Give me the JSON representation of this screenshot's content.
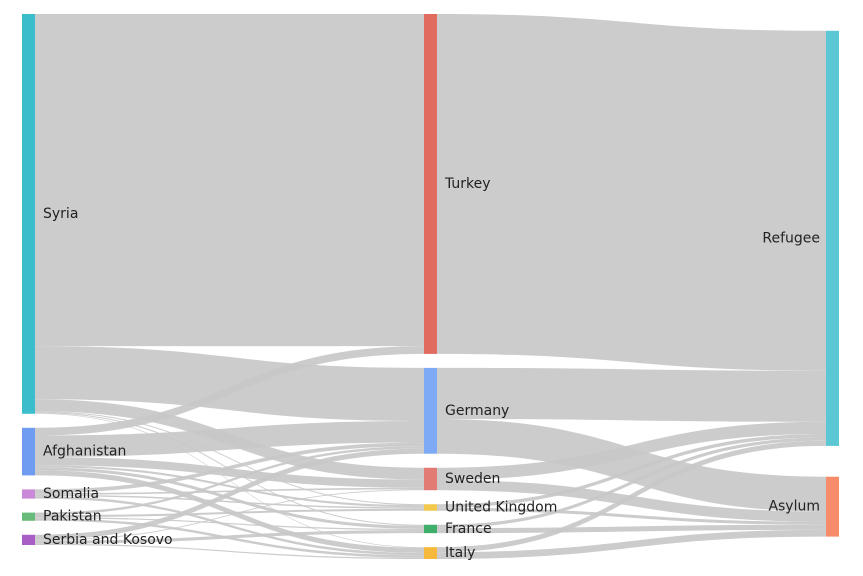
{
  "chart_data": {
    "type": "sankey",
    "nodes": [
      {
        "id": "syria",
        "label": "Syria",
        "column": 0,
        "color": "#3bbdcc"
      },
      {
        "id": "afghanistan",
        "label": "Afghanistan",
        "column": 0,
        "color": "#6f9bf0"
      },
      {
        "id": "somalia",
        "label": "Somalia",
        "column": 0,
        "color": "#cc88d8"
      },
      {
        "id": "pakistan",
        "label": "Pakistan",
        "column": 0,
        "color": "#66bb7a"
      },
      {
        "id": "serbia",
        "label": "Serbia and Kosovo",
        "column": 0,
        "color": "#a85ec4"
      },
      {
        "id": "turkey",
        "label": "Turkey",
        "column": 1,
        "color": "#e06b5e"
      },
      {
        "id": "germany",
        "label": "Germany",
        "column": 1,
        "color": "#7eaaf5"
      },
      {
        "id": "sweden",
        "label": "Sweden",
        "column": 1,
        "color": "#e37b75"
      },
      {
        "id": "uk",
        "label": "United Kingdom",
        "column": 1,
        "color": "#f2c94c"
      },
      {
        "id": "france",
        "label": "France",
        "column": 1,
        "color": "#3fae6a"
      },
      {
        "id": "italy",
        "label": "Italy",
        "column": 1,
        "color": "#f6b93b"
      },
      {
        "id": "refugee",
        "label": "Refugee",
        "column": 2,
        "color": "#5bc7d5"
      },
      {
        "id": "asylum",
        "label": "Asylum",
        "column": 2,
        "color": "#f78c6b"
      }
    ],
    "links": [
      {
        "source": "syria",
        "target": "turkey",
        "value": 1625
      },
      {
        "source": "syria",
        "target": "germany",
        "value": 260
      },
      {
        "source": "syria",
        "target": "sweden",
        "value": 58
      },
      {
        "source": "syria",
        "target": "uk",
        "value": 5
      },
      {
        "source": "syria",
        "target": "france",
        "value": 5
      },
      {
        "source": "syria",
        "target": "italy",
        "value": 3
      },
      {
        "source": "afghanistan",
        "target": "turkey",
        "value": 38
      },
      {
        "source": "afghanistan",
        "target": "germany",
        "value": 105
      },
      {
        "source": "afghanistan",
        "target": "sweden",
        "value": 40
      },
      {
        "source": "afghanistan",
        "target": "uk",
        "value": 10
      },
      {
        "source": "afghanistan",
        "target": "france",
        "value": 15
      },
      {
        "source": "afghanistan",
        "target": "italy",
        "value": 25
      },
      {
        "source": "somalia",
        "target": "germany",
        "value": 18
      },
      {
        "source": "somalia",
        "target": "sweden",
        "value": 8
      },
      {
        "source": "somalia",
        "target": "uk",
        "value": 7
      },
      {
        "source": "somalia",
        "target": "italy",
        "value": 12
      },
      {
        "source": "pakistan",
        "target": "germany",
        "value": 12
      },
      {
        "source": "pakistan",
        "target": "uk",
        "value": 10
      },
      {
        "source": "pakistan",
        "target": "france",
        "value": 6
      },
      {
        "source": "pakistan",
        "target": "italy",
        "value": 12
      },
      {
        "source": "serbia",
        "target": "germany",
        "value": 25
      },
      {
        "source": "serbia",
        "target": "sweden",
        "value": 4
      },
      {
        "source": "serbia",
        "target": "france",
        "value": 15
      },
      {
        "source": "serbia",
        "target": "italy",
        "value": 6
      },
      {
        "source": "turkey",
        "target": "refugee",
        "value": 1663
      },
      {
        "source": "germany",
        "target": "refugee",
        "value": 250
      },
      {
        "source": "germany",
        "target": "asylum",
        "value": 170
      },
      {
        "source": "sweden",
        "target": "refugee",
        "value": 60
      },
      {
        "source": "sweden",
        "target": "asylum",
        "value": 50
      },
      {
        "source": "uk",
        "target": "refugee",
        "value": 17
      },
      {
        "source": "uk",
        "target": "asylum",
        "value": 15
      },
      {
        "source": "france",
        "target": "refugee",
        "value": 16
      },
      {
        "source": "france",
        "target": "asylum",
        "value": 25
      },
      {
        "source": "italy",
        "target": "refugee",
        "value": 25
      },
      {
        "source": "italy",
        "target": "asylum",
        "value": 33
      }
    ]
  }
}
